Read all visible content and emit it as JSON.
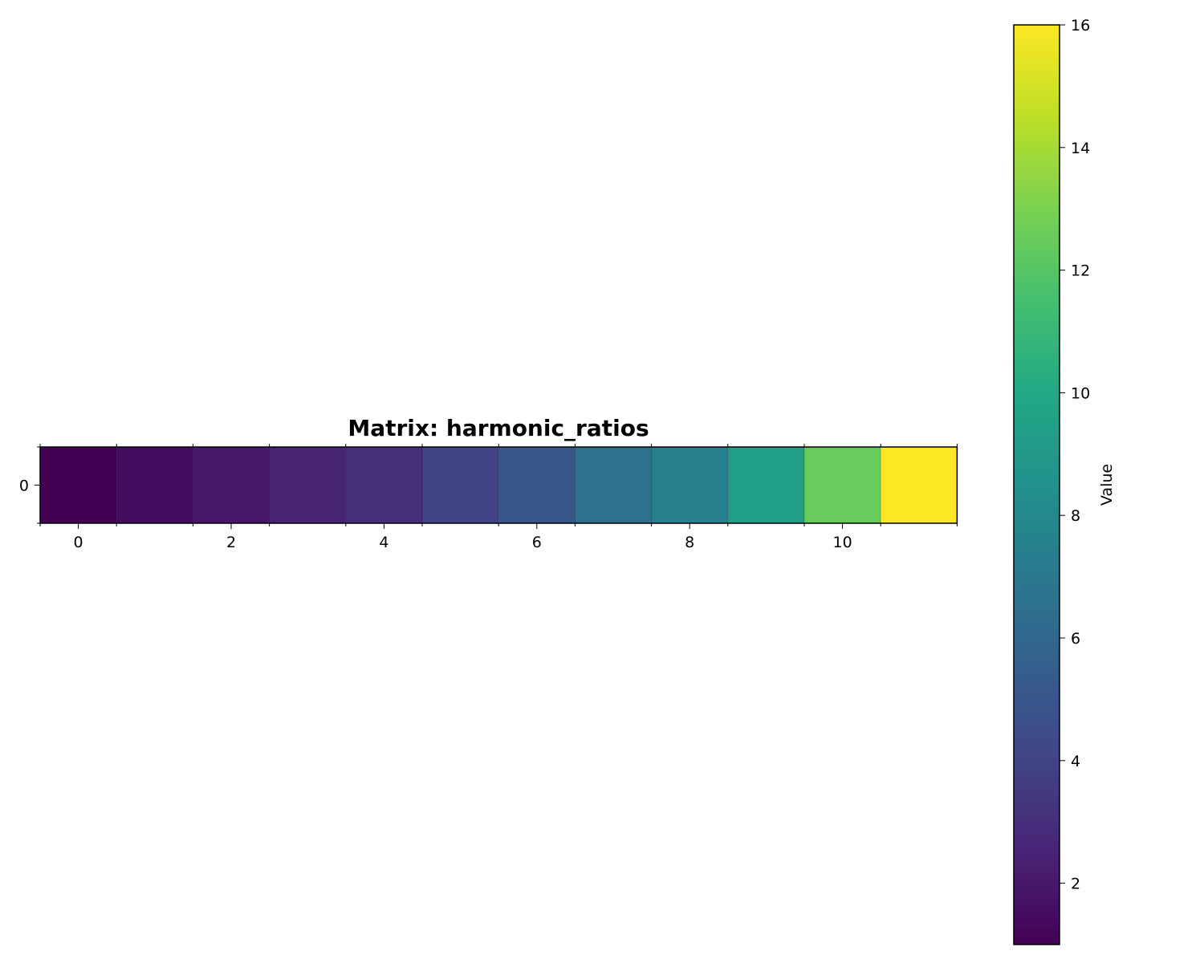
{
  "chart_data": {
    "type": "heatmap",
    "title": "Matrix: harmonic_ratios",
    "rows": [
      0
    ],
    "columns": [
      0,
      1,
      2,
      3,
      4,
      5,
      6,
      7,
      8,
      9,
      10,
      11
    ],
    "values": [
      [
        1.0,
        1.5,
        2.0,
        2.5,
        3.0,
        4.0,
        5.0,
        6.5,
        7.5,
        9.5,
        12.5,
        16.0
      ]
    ],
    "x_ticks": [
      "0",
      "2",
      "4",
      "6",
      "8",
      "10"
    ],
    "y_ticks": [
      "0"
    ],
    "colormap": "viridis",
    "colorbar": {
      "label": "Value",
      "range": [
        1.0,
        16.0
      ],
      "ticks": [
        "2",
        "4",
        "6",
        "8",
        "10",
        "12",
        "14",
        "16"
      ]
    }
  }
}
